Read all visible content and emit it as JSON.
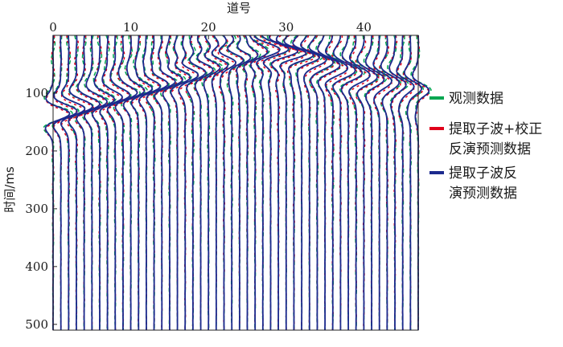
{
  "chart_data": {
    "type": "line",
    "title": "",
    "xlabel": "道号",
    "ylabel": "时间/ms",
    "x_axis_position": "top",
    "xlim": [
      0,
      47
    ],
    "ylim": [
      0,
      510
    ],
    "y_inverted": true,
    "x_ticks": [
      0,
      10,
      20,
      30,
      40
    ],
    "y_ticks": [
      100,
      200,
      300,
      400,
      500
    ],
    "trace_count": 48,
    "trace_spacing": 1,
    "sample_interval_ms": 2,
    "grid": false,
    "legend_position": "right",
    "series": [
      {
        "name": "观测数据",
        "color": "#00a651",
        "style": "dashed",
        "amp_scale": 1.0,
        "lag_ms": 0
      },
      {
        "name": "提取子波+校正反演预测数据",
        "color": "#e0001b",
        "style": "dashed",
        "amp_scale": 0.92,
        "lag_ms": 3
      },
      {
        "name": "提取子波反演预测数据",
        "color": "#1c2a8e",
        "style": "solid",
        "amp_scale": 0.9,
        "lag_ms": 0
      }
    ],
    "events": [
      {
        "type": "direct",
        "apex_trace": 28,
        "apex_time_ms": 20,
        "slope_ms_per_trace": 4.3,
        "amplitude": 1.6
      },
      {
        "type": "reflection",
        "apex_trace": 29,
        "t0_ms": 32,
        "velocity_traces_per_ms": 0.22,
        "amplitude": 1.3
      },
      {
        "type": "reflection",
        "apex_trace": 29,
        "t0_ms": 60,
        "velocity_traces_per_ms": 0.24,
        "amplitude": 0.9
      },
      {
        "type": "reflection",
        "apex_trace": 24,
        "t0_ms": 10,
        "velocity_traces_per_ms": 0.19,
        "amplitude": 1.1
      }
    ]
  },
  "legend": {
    "items": [
      {
        "color": "#00a651",
        "lines": [
          "观测数据"
        ]
      },
      {
        "color": "#e0001b",
        "lines": [
          "提取子波+校正",
          "反演预测数据"
        ]
      },
      {
        "color": "#1c2a8e",
        "lines": [
          "提取子波反",
          "演预测数据"
        ]
      }
    ]
  }
}
